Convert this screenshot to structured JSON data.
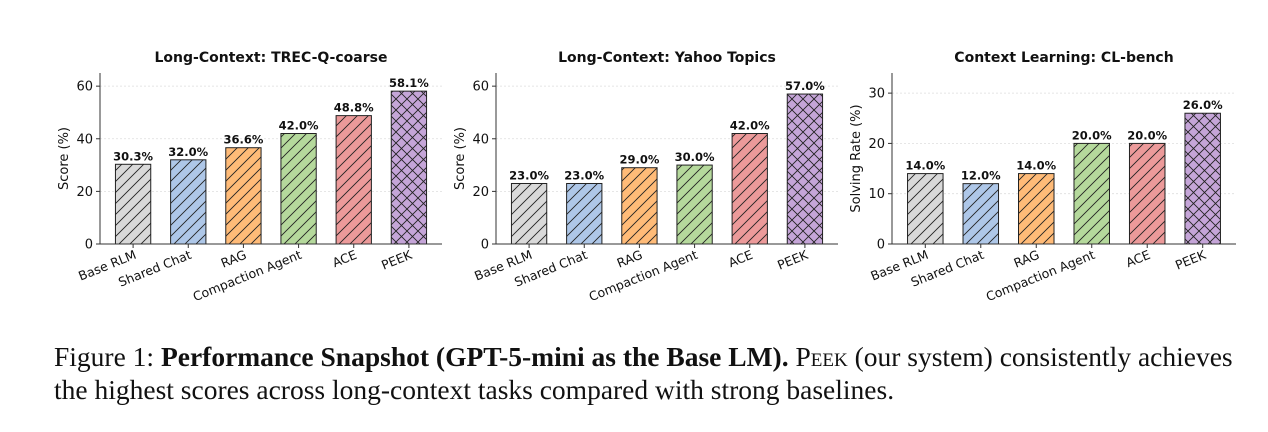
{
  "chart_data": [
    {
      "type": "bar",
      "title": "Long-Context: TREC-Q-coarse",
      "ylabel": "Score (%)",
      "ylim": [
        0,
        65
      ],
      "yticks": [
        0,
        20,
        40,
        60
      ],
      "grid": true,
      "categories": [
        "Base RLM",
        "Shared Chat",
        "RAG",
        "Compaction Agent",
        "ACE",
        "PEEK"
      ],
      "values": [
        30.3,
        32.0,
        36.6,
        42.0,
        48.8,
        58.1
      ],
      "value_labels": [
        "30.3%",
        "32.0%",
        "36.6%",
        "42.0%",
        "48.8%",
        "58.1%"
      ]
    },
    {
      "type": "bar",
      "title": "Long-Context: Yahoo Topics",
      "ylabel": "Score (%)",
      "ylim": [
        0,
        65
      ],
      "yticks": [
        0,
        20,
        40,
        60
      ],
      "grid": true,
      "categories": [
        "Base RLM",
        "Shared Chat",
        "RAG",
        "Compaction Agent",
        "ACE",
        "PEEK"
      ],
      "values": [
        23.0,
        23.0,
        29.0,
        30.0,
        42.0,
        57.0
      ],
      "value_labels": [
        "23.0%",
        "23.0%",
        "29.0%",
        "30.0%",
        "42.0%",
        "57.0%"
      ]
    },
    {
      "type": "bar",
      "title": "Context Learning: CL-bench",
      "ylabel": "Solving Rate (%)",
      "ylim": [
        0,
        34
      ],
      "yticks": [
        0,
        10,
        20,
        30
      ],
      "grid": true,
      "categories": [
        "Base RLM",
        "Shared Chat",
        "RAG",
        "Compaction Agent",
        "ACE",
        "PEEK"
      ],
      "values": [
        14.0,
        12.0,
        14.0,
        20.0,
        20.0,
        26.0
      ],
      "value_labels": [
        "14.0%",
        "12.0%",
        "14.0%",
        "20.0%",
        "20.0%",
        "26.0%"
      ]
    }
  ],
  "style": {
    "bar_colors": [
      "#d9d9d9",
      "#aec7e8",
      "#ffbb78",
      "#b5d99c",
      "#ec9a9a",
      "#c5a5d8"
    ],
    "hatches": [
      "diagonal",
      "diagonal",
      "diagonal",
      "diagonal",
      "diagonal",
      "crosshatch"
    ]
  },
  "caption": {
    "label": "Figure 1:",
    "bold": "Performance Snapshot (GPT-5-mini as the Base LM).",
    "system_name": "Peek",
    "text": "(our system) consistently achieves the highest scores across long-context tasks compared with strong baselines."
  }
}
